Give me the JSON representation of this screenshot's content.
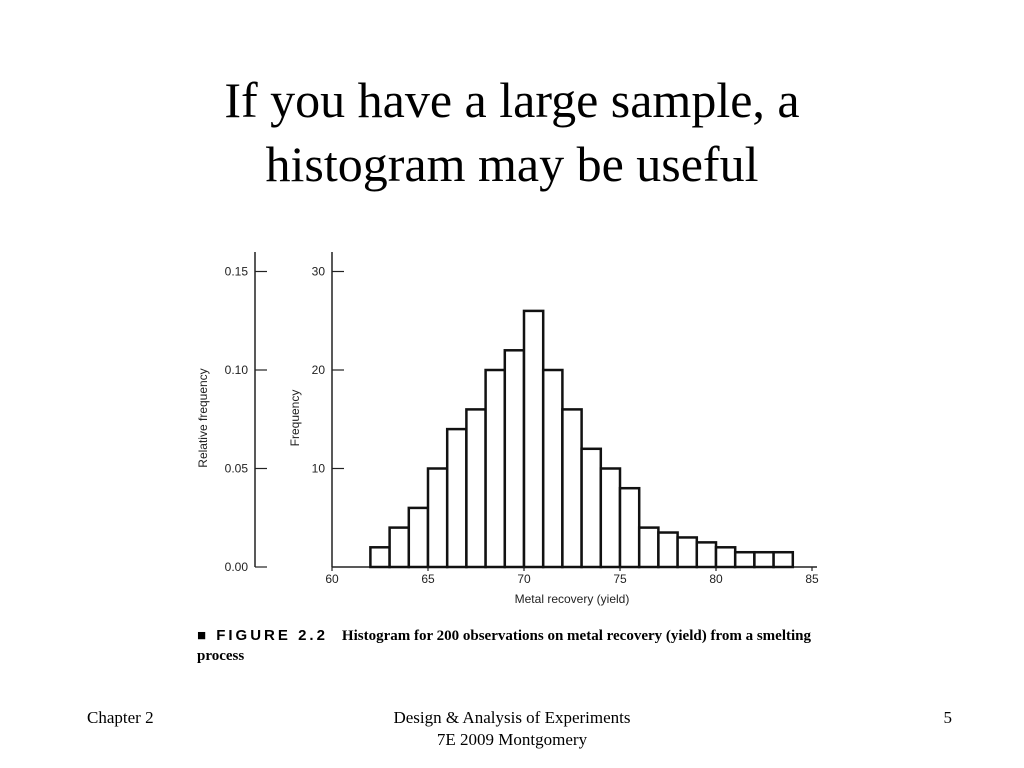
{
  "slide": {
    "title_line1": "If you have a large sample, a",
    "title_line2": "histogram may be useful"
  },
  "chart_data": {
    "type": "bar",
    "bin_width": 1,
    "x": [
      62,
      63,
      64,
      65,
      66,
      67,
      68,
      69,
      70,
      71,
      72,
      73,
      74,
      75,
      76,
      77,
      78,
      79,
      80,
      81,
      82,
      83
    ],
    "values": [
      2,
      4,
      6,
      10,
      14,
      16,
      20,
      22,
      26,
      20,
      16,
      12,
      10,
      8,
      4,
      3.5,
      3,
      2.5,
      2,
      1.5,
      1.5,
      1.5
    ],
    "xlabel": "Metal recovery (yield)",
    "ylabel": "Frequency",
    "ylabel2": "Relative frequency",
    "xlim": [
      60,
      86
    ],
    "ylim": [
      0,
      30
    ],
    "y2lim": [
      0,
      0.15
    ],
    "x_ticks": [
      60,
      65,
      70,
      75,
      80,
      85
    ],
    "y_ticks": [
      10,
      20,
      30
    ],
    "y2_ticks": [
      "0.00",
      "0.05",
      "0.10",
      "0.15"
    ],
    "grid": false,
    "legend": "none"
  },
  "caption": {
    "label": "■ FIGURE 2.2",
    "text": "Histogram for 200 observations on metal recovery (yield) from a smelting process"
  },
  "footer": {
    "left": "Chapter 2",
    "center_line1": "Design & Analysis of Experiments",
    "center_line2": "7E 2009 Montgomery",
    "page": "5"
  }
}
